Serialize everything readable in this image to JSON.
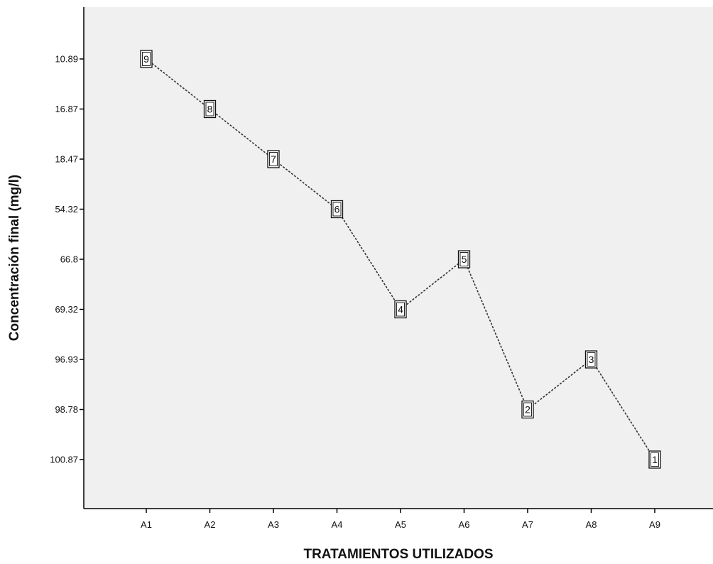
{
  "chart_data": {
    "type": "line",
    "xlabel": "TRATAMIENTOS UTILIZADOS",
    "ylabel": "Concentración final (mg/l)",
    "categories": [
      "A1",
      "A2",
      "A3",
      "A4",
      "A5",
      "A6",
      "A7",
      "A8",
      "A9"
    ],
    "y_ticks": [
      "10.89",
      "16.87",
      "18.47",
      "54.32",
      "66.8",
      "69.32",
      "96.93",
      "98.78",
      "100.87"
    ],
    "series": [
      {
        "values": [
          "10.89",
          "16.87",
          "18.47",
          "54.32",
          "69.32",
          "66.8",
          "98.78",
          "96.93",
          "100.87"
        ],
        "markers": [
          "9",
          "8",
          "7",
          "6",
          "4",
          "5",
          "2",
          "3",
          "1"
        ]
      }
    ],
    "grid": false,
    "legend": "none",
    "colors": {
      "plot_background": "#f0f0f0",
      "line": "#333333",
      "axis": "#000000",
      "marker_fill": "#ffffff"
    }
  }
}
